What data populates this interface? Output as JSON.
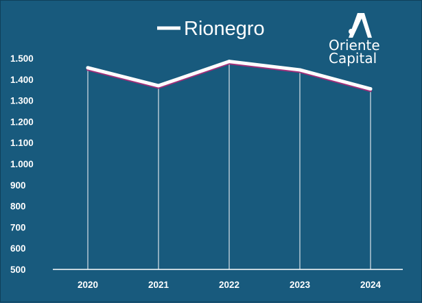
{
  "chart_data": {
    "type": "line",
    "title": "",
    "xlabel": "",
    "ylabel": "",
    "categories": [
      "2020",
      "2021",
      "2022",
      "2023",
      "2024"
    ],
    "ylim": [
      500,
      1500
    ],
    "yticks": [
      "500",
      "600",
      "700",
      "800",
      "900",
      "1.000",
      "1.100",
      "1.200",
      "1.300",
      "1.400",
      "1.500"
    ],
    "ytick_values": [
      500,
      600,
      700,
      800,
      900,
      1000,
      1100,
      1200,
      1300,
      1400,
      1500
    ],
    "series": [
      {
        "name": "Rionegro",
        "values": [
          1455,
          1370,
          1485,
          1445,
          1355
        ],
        "color": "#ffffff",
        "shadow_color": "#a0307a"
      }
    ],
    "grid": false,
    "drop_lines": true,
    "legend": "top-center"
  },
  "logo": {
    "line1": "Oriente",
    "line2": "Capital"
  },
  "colors": {
    "background": "#185a7d",
    "axis": "#ffffff",
    "line": "#ffffff"
  }
}
